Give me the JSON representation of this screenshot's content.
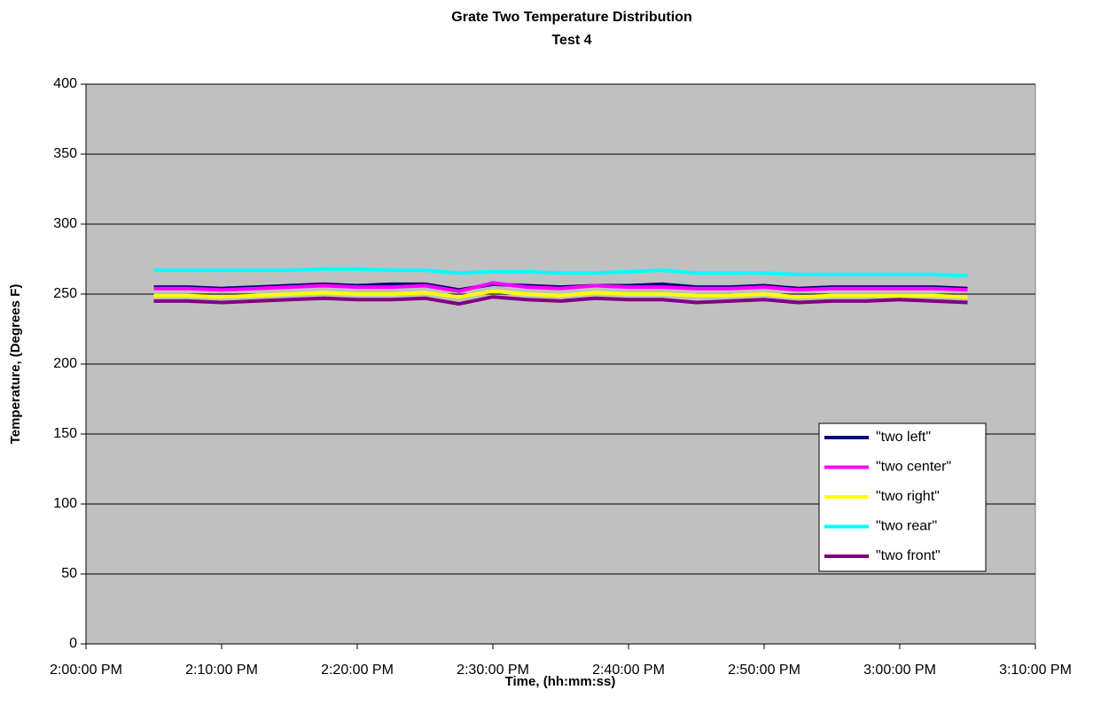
{
  "chart_data": {
    "type": "line",
    "title": "Grate Two Temperature Distribution",
    "subtitle": "Test 4",
    "x_label": "Time, (hh:mm:ss)",
    "y_label": "Temperature, (Degrees F)",
    "x": [
      "2:05:00 PM",
      "2:07:30 PM",
      "2:10:00 PM",
      "2:12:30 PM",
      "2:15:00 PM",
      "2:17:30 PM",
      "2:20:00 PM",
      "2:22:30 PM",
      "2:25:00 PM",
      "2:27:30 PM",
      "2:30:00 PM",
      "2:32:30 PM",
      "2:35:00 PM",
      "2:37:30 PM",
      "2:40:00 PM",
      "2:42:30 PM",
      "2:45:00 PM",
      "2:47:30 PM",
      "2:50:00 PM",
      "2:52:30 PM",
      "2:55:00 PM",
      "2:57:30 PM",
      "3:00:00 PM",
      "3:02:30 PM",
      "3:05:00 PM"
    ],
    "series": [
      {
        "name": "\"two left\"",
        "color": "#000080",
        "values": [
          255,
          255,
          254,
          255,
          256,
          257,
          256,
          257,
          257,
          253,
          257,
          256,
          255,
          256,
          256,
          257,
          255,
          255,
          256,
          254,
          255,
          255,
          255,
          255,
          254
        ]
      },
      {
        "name": "\"two center\"",
        "color": "#ff00ff",
        "values": [
          254,
          254,
          253,
          254,
          255,
          256,
          255,
          255,
          256,
          252,
          258,
          255,
          254,
          256,
          255,
          255,
          254,
          254,
          255,
          253,
          254,
          254,
          254,
          254,
          253
        ]
      },
      {
        "name": "\"two right\"",
        "color": "#ffff00",
        "values": [
          249,
          249,
          248,
          249,
          250,
          251,
          250,
          250,
          251,
          248,
          252,
          250,
          249,
          251,
          250,
          250,
          249,
          249,
          250,
          248,
          249,
          249,
          249,
          249,
          248
        ]
      },
      {
        "name": "\"two rear\"",
        "color": "#00ffff",
        "values": [
          267,
          267,
          267,
          267,
          267,
          268,
          268,
          267,
          267,
          265,
          266,
          266,
          265,
          265,
          266,
          267,
          265,
          265,
          265,
          264,
          264,
          264,
          264,
          264,
          263
        ]
      },
      {
        "name": "\"two front\"",
        "color": "#800080",
        "values": [
          245,
          245,
          244,
          245,
          246,
          247,
          246,
          246,
          247,
          243,
          248,
          246,
          245,
          247,
          246,
          246,
          244,
          245,
          246,
          244,
          245,
          245,
          246,
          245,
          244
        ]
      }
    ],
    "xlim": [
      "2:00:00 PM",
      "3:10:00 PM"
    ],
    "xticks": [
      "2:00:00 PM",
      "2:10:00 PM",
      "2:20:00 PM",
      "2:30:00 PM",
      "2:40:00 PM",
      "2:50:00 PM",
      "3:00:00 PM",
      "3:10:00 PM"
    ],
    "ylim": [
      0,
      400
    ],
    "yticks": [
      0,
      50,
      100,
      150,
      200,
      250,
      300,
      350,
      400
    ],
    "grid": true,
    "legend": "lower right",
    "plot_background": "#c0c0c0"
  }
}
